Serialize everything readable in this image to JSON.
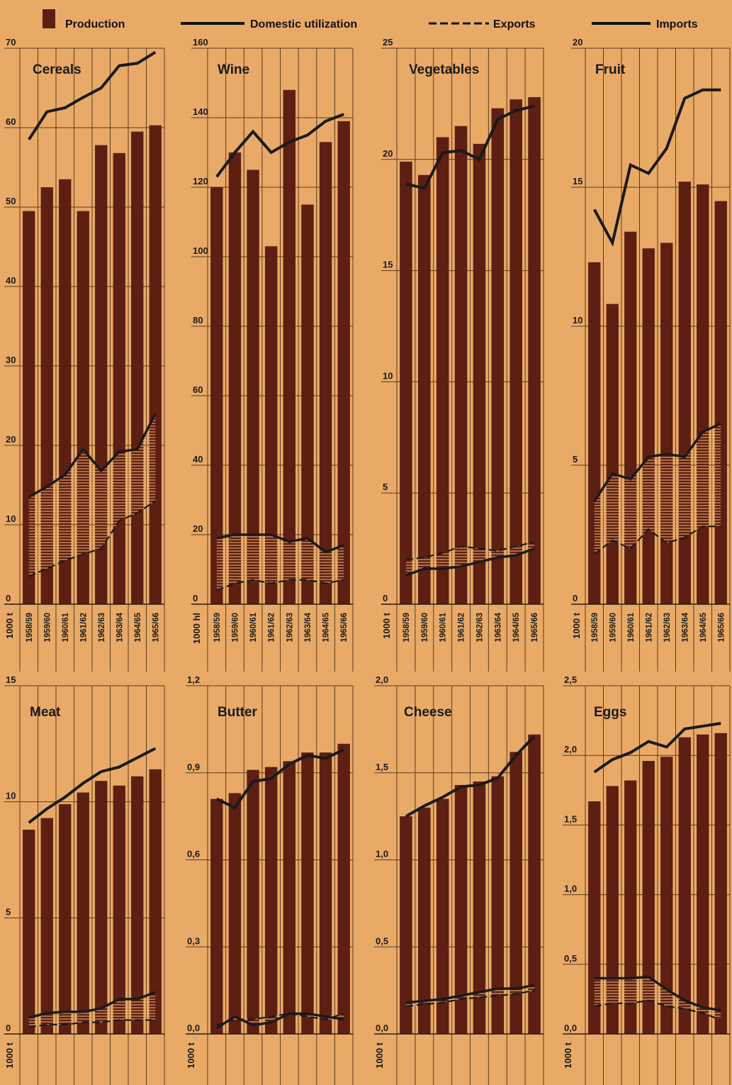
{
  "legend": {
    "production": "Production",
    "domestic": "Domestic utilization",
    "exports": "Exports",
    "imports": "Imports"
  },
  "colors": {
    "background": "#e9aa68",
    "bar": "#5c1f12",
    "line": "#1a1a1a",
    "grid": "#5a3a1e",
    "fill_hatch": "#5c1f12"
  },
  "chart_data": [
    {
      "type": "bar",
      "title": "Cereals",
      "unit": "1000 t",
      "categories": [
        "1958/59",
        "1959/60",
        "1960/61",
        "1961/62",
        "1962/63",
        "1963/64",
        "1964/65",
        "1965/66"
      ],
      "ylim": [
        0,
        70
      ],
      "yticks": [
        "0",
        "10",
        "20",
        "30",
        "40",
        "50",
        "60",
        "70"
      ],
      "ytick_values": [
        0,
        10,
        20,
        30,
        40,
        50,
        60,
        70
      ],
      "series": [
        {
          "name": "Production",
          "values": [
            49.5,
            52.5,
            53.5,
            49.5,
            57.8,
            56.8,
            59.5,
            60.3
          ]
        },
        {
          "name": "Domestic utilization",
          "values": [
            58.5,
            62,
            62.5,
            63.8,
            65,
            67.8,
            68.1,
            69.5
          ]
        },
        {
          "name": "Exports",
          "values": [
            3.5,
            4.5,
            5.5,
            6.3,
            7,
            10.5,
            11.5,
            13
          ]
        },
        {
          "name": "Imports",
          "values": [
            13.5,
            14.8,
            16.3,
            19.5,
            16.8,
            19.2,
            19.5,
            24
          ]
        }
      ]
    },
    {
      "type": "bar",
      "title": "Wine",
      "unit": "1000 hl",
      "categories": [
        "1958/59",
        "1959/60",
        "1960/61",
        "1961/62",
        "1962/63",
        "1963/64",
        "1964/65",
        "1965/66"
      ],
      "ylim": [
        0,
        160
      ],
      "yticks": [
        "0",
        "20",
        "40",
        "60",
        "80",
        "100",
        "120",
        "140",
        "160"
      ],
      "ytick_values": [
        0,
        20,
        40,
        60,
        80,
        100,
        120,
        140,
        160
      ],
      "series": [
        {
          "name": "Production",
          "values": [
            120,
            130,
            125,
            103,
            148,
            115,
            133,
            139
          ]
        },
        {
          "name": "Domestic utilization",
          "values": [
            123,
            130,
            136,
            130,
            133,
            135,
            139,
            141
          ]
        },
        {
          "name": "Exports",
          "values": [
            4,
            6,
            7,
            6,
            7,
            7,
            6,
            7
          ]
        },
        {
          "name": "Imports",
          "values": [
            19,
            20,
            20,
            20,
            18,
            19,
            15,
            17
          ]
        }
      ]
    },
    {
      "type": "bar",
      "title": "Vegetables",
      "unit": "1000 t",
      "categories": [
        "1958/59",
        "1959/60",
        "1960/61",
        "1961/62",
        "1962/63",
        "1963/64",
        "1964/65",
        "1965/66"
      ],
      "ylim": [
        0,
        25
      ],
      "yticks": [
        "0",
        "5",
        "10",
        "15",
        "20",
        "25"
      ],
      "ytick_values": [
        0,
        5,
        10,
        15,
        20,
        25
      ],
      "series": [
        {
          "name": "Production",
          "values": [
            19.9,
            19.3,
            21,
            21.5,
            20.7,
            22.3,
            22.7,
            22.8
          ]
        },
        {
          "name": "Domestic utilization",
          "values": [
            18.9,
            18.7,
            20.3,
            20.4,
            20,
            21.8,
            22.2,
            22.4
          ]
        },
        {
          "name": "Exports",
          "values": [
            2,
            2.1,
            2.3,
            2.6,
            2.5,
            2.4,
            2.6,
            2.8
          ]
        },
        {
          "name": "Imports",
          "values": [
            1.3,
            1.6,
            1.6,
            1.7,
            1.9,
            2.1,
            2.2,
            2.5
          ]
        }
      ]
    },
    {
      "type": "bar",
      "title": "Fruit",
      "unit": "1000 t",
      "categories": [
        "1958/59",
        "1959/60",
        "1960/61",
        "1961/62",
        "1962/63",
        "1963/64",
        "1964/65",
        "1965/66"
      ],
      "ylim": [
        0,
        20
      ],
      "yticks": [
        "0",
        "5",
        "10",
        "15",
        "20"
      ],
      "ytick_values": [
        0,
        5,
        10,
        15,
        20
      ],
      "series": [
        {
          "name": "Production",
          "values": [
            12.3,
            10.8,
            13.4,
            12.8,
            13,
            15.2,
            15.1,
            14.5
          ]
        },
        {
          "name": "Domestic utilization",
          "values": [
            14.2,
            13,
            15.8,
            15.5,
            16.4,
            18.2,
            18.5,
            18.5
          ]
        },
        {
          "name": "Exports",
          "values": [
            1.8,
            2.3,
            2,
            2.7,
            2.2,
            2.4,
            2.8,
            2.8
          ]
        },
        {
          "name": "Imports",
          "values": [
            3.7,
            4.7,
            4.5,
            5.3,
            5.4,
            5.3,
            6.2,
            6.5
          ]
        }
      ]
    },
    {
      "type": "bar",
      "title": "Meat",
      "unit": "1000 t",
      "categories": [
        "1958/59",
        "1959/60",
        "1960/61",
        "1961/62",
        "1962/63",
        "1963/64",
        "1964/65",
        "1965/66"
      ],
      "ylim": [
        0,
        15
      ],
      "yticks": [
        "0",
        "5",
        "10",
        "15"
      ],
      "ytick_values": [
        0,
        5,
        10,
        15
      ],
      "series": [
        {
          "name": "Production",
          "values": [
            8.8,
            9.3,
            9.9,
            10.4,
            10.9,
            10.7,
            11.1,
            11.4
          ]
        },
        {
          "name": "Domestic utilization",
          "values": [
            9.1,
            9.7,
            10.2,
            10.8,
            11.3,
            11.5,
            11.9,
            12.3
          ]
        },
        {
          "name": "Exports",
          "values": [
            0.3,
            0.4,
            0.4,
            0.5,
            0.5,
            0.6,
            0.6,
            0.6
          ]
        },
        {
          "name": "Imports",
          "values": [
            0.7,
            0.9,
            0.95,
            0.95,
            1.1,
            1.5,
            1.5,
            1.8
          ]
        }
      ]
    },
    {
      "type": "bar",
      "title": "Butter",
      "unit": "1000 t",
      "categories": [
        "1958/59",
        "1959/60",
        "1960/61",
        "1961/62",
        "1962/63",
        "1963/64",
        "1964/65",
        "1965/66"
      ],
      "ylim": [
        0,
        1.2
      ],
      "yticks": [
        "0,0",
        "0,3",
        "0,6",
        "0,9",
        "1,2"
      ],
      "ytick_values": [
        0,
        0.3,
        0.6,
        0.9,
        1.2
      ],
      "series": [
        {
          "name": "Production",
          "values": [
            0.81,
            0.83,
            0.91,
            0.92,
            0.94,
            0.97,
            0.97,
            1.0
          ]
        },
        {
          "name": "Domestic utilization",
          "values": [
            0.81,
            0.78,
            0.87,
            0.88,
            0.93,
            0.96,
            0.95,
            0.98
          ]
        },
        {
          "name": "Exports",
          "values": [
            0.03,
            0.05,
            0.05,
            0.06,
            0.07,
            0.06,
            0.05,
            0.07
          ]
        },
        {
          "name": "Imports",
          "values": [
            0.02,
            0.06,
            0.03,
            0.04,
            0.07,
            0.07,
            0.06,
            0.05
          ]
        }
      ]
    },
    {
      "type": "bar",
      "title": "Cheese",
      "unit": "1000 t",
      "categories": [
        "1958/59",
        "1959/60",
        "1960/61",
        "1961/62",
        "1962/63",
        "1963/64",
        "1964/65",
        "1965/66"
      ],
      "ylim": [
        0,
        2.0
      ],
      "yticks": [
        "0,0",
        "0,5",
        "1,0",
        "1,5",
        "2,0"
      ],
      "ytick_values": [
        0,
        0.5,
        1.0,
        1.5,
        2.0
      ],
      "series": [
        {
          "name": "Production",
          "values": [
            1.25,
            1.3,
            1.35,
            1.43,
            1.45,
            1.48,
            1.62,
            1.72
          ]
        },
        {
          "name": "Domestic utilization",
          "values": [
            1.25,
            1.31,
            1.36,
            1.42,
            1.43,
            1.47,
            1.6,
            1.71
          ]
        },
        {
          "name": "Exports",
          "values": [
            0.16,
            0.17,
            0.18,
            0.2,
            0.21,
            0.22,
            0.23,
            0.25
          ]
        },
        {
          "name": "Imports",
          "values": [
            0.18,
            0.19,
            0.2,
            0.22,
            0.24,
            0.26,
            0.26,
            0.28
          ]
        }
      ]
    },
    {
      "type": "bar",
      "title": "Eggs",
      "unit": "1000 t",
      "categories": [
        "1958/59",
        "1959/60",
        "1960/61",
        "1961/62",
        "1962/63",
        "1963/64",
        "1964/65",
        "1965/66"
      ],
      "ylim": [
        0,
        2.5
      ],
      "yticks": [
        "0,0",
        "0,5",
        "1,0",
        "1,5",
        "2,0",
        "2,5"
      ],
      "ytick_values": [
        0,
        0.5,
        1.0,
        1.5,
        2.0,
        2.5
      ],
      "series": [
        {
          "name": "Production",
          "values": [
            1.67,
            1.78,
            1.82,
            1.96,
            1.99,
            2.13,
            2.15,
            2.16
          ]
        },
        {
          "name": "Domestic utilization",
          "values": [
            1.88,
            1.97,
            2.02,
            2.1,
            2.06,
            2.19,
            2.21,
            2.23
          ]
        },
        {
          "name": "Exports",
          "values": [
            0.2,
            0.22,
            0.22,
            0.24,
            0.2,
            0.18,
            0.15,
            0.1
          ]
        },
        {
          "name": "Imports",
          "values": [
            0.4,
            0.4,
            0.4,
            0.41,
            0.32,
            0.24,
            0.19,
            0.17
          ]
        }
      ]
    }
  ]
}
